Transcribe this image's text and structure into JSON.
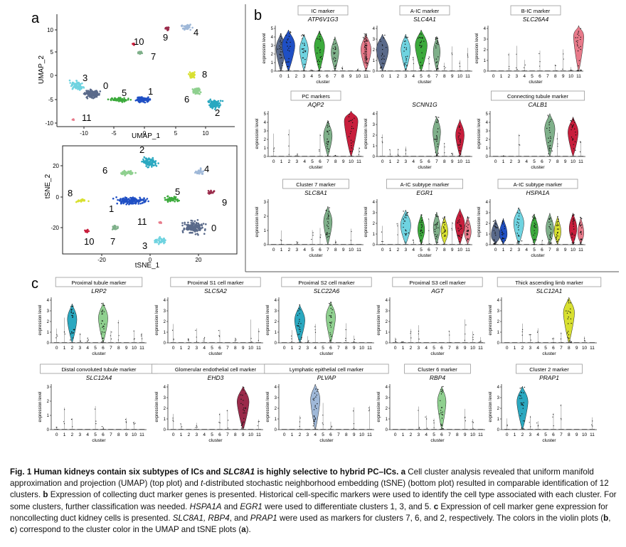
{
  "panel_letters": {
    "a": "a",
    "b": "b",
    "c": "c"
  },
  "umap": {
    "ylabel": "UMAP_2",
    "xlabel": "UMAP_1",
    "xticks": [
      "-10",
      "-5",
      "0",
      "5",
      "10"
    ],
    "yticks": [
      "10",
      "5",
      "0",
      "-5",
      "-10"
    ],
    "cluster_labels": [
      "0",
      "1",
      "2",
      "3",
      "4",
      "5",
      "6",
      "7",
      "8",
      "9",
      "10",
      "11"
    ]
  },
  "tsne": {
    "ylabel": "tSNE_2",
    "xlabel": "tSNE_1",
    "xticks": [
      "-20",
      "0",
      "20"
    ],
    "yticks": [
      "20",
      "0",
      "-20"
    ],
    "cluster_labels": [
      "0",
      "1",
      "2",
      "3",
      "4",
      "5",
      "6",
      "7",
      "8",
      "9",
      "10",
      "11"
    ]
  },
  "violin_axis": {
    "ylabel": "expression level",
    "xlabel": "cluster",
    "clusters": [
      "0",
      "1",
      "2",
      "3",
      "4",
      "5",
      "6",
      "7",
      "8",
      "9",
      "10",
      "11"
    ]
  },
  "cluster_colors": [
    "#5a6a8a",
    "#1f4fc4",
    "#2aa8c0",
    "#6fd3e0",
    "#9fb8d8",
    "#3caa3c",
    "#8fd08f",
    "#7fb08a",
    "#d8e030",
    "#9a2a4a",
    "#c81e3c",
    "#e87a8a"
  ],
  "panel_b": [
    {
      "header": "IC marker",
      "gene": "ATP6V1G3",
      "ymax": 5,
      "violins": [
        [
          0,
          0.55,
          2.6
        ],
        [
          1,
          0.75,
          3.0
        ],
        [
          3,
          0.5,
          2.5
        ],
        [
          5,
          0.6,
          2.9
        ],
        [
          7,
          0.45,
          2.2
        ],
        [
          11,
          0.6,
          2.5
        ]
      ]
    },
    {
      "header": "A-IC marker",
      "gene": "SLC4A1",
      "ymax": 4,
      "violins": [
        [
          0,
          0.7,
          2.0
        ],
        [
          3,
          0.55,
          2.0
        ],
        [
          5,
          0.7,
          2.4
        ],
        [
          7,
          0.4,
          1.8
        ]
      ]
    },
    {
      "header": "B-IC marker",
      "gene": "SLC26A4",
      "ymax": 4,
      "violins": [
        [
          11,
          0.6,
          3.2
        ]
      ]
    },
    {
      "header": "PC markers",
      "gene": "AQP2",
      "ymax": 5,
      "violins": [
        [
          7,
          0.5,
          2.4
        ],
        [
          10,
          0.8,
          4.1
        ]
      ]
    },
    {
      "header": "",
      "gene": "SCNN1G",
      "ymax": 4,
      "violins": [
        [
          7,
          0.45,
          2.3
        ],
        [
          10,
          0.5,
          2.0
        ]
      ]
    },
    {
      "header": "Connecting tubule marker",
      "gene": "CALB1",
      "ymax": 5,
      "violins": [
        [
          7,
          0.6,
          3.2
        ],
        [
          10,
          0.6,
          2.8
        ]
      ]
    },
    {
      "header": "Cluster 7 marker",
      "gene": "SLC8A1",
      "ymax": 3,
      "violins": [
        [
          7,
          0.5,
          1.6
        ]
      ]
    },
    {
      "header": "A-IC subtype marker",
      "gene": "EGR1",
      "ymax": 4,
      "violins": [
        [
          3,
          0.6,
          1.8
        ],
        [
          5,
          0.4,
          1.4
        ],
        [
          7,
          0.4,
          1.6
        ],
        [
          8,
          0.4,
          1.2
        ],
        [
          10,
          0.55,
          1.9
        ],
        [
          11,
          0.4,
          1.2
        ]
      ]
    },
    {
      "header": "A-IC subtype  marker",
      "gene": "HSPA1A",
      "ymax": 4,
      "violins": [
        [
          0,
          0.5,
          0.9
        ],
        [
          1,
          0.45,
          1.0
        ],
        [
          3,
          0.6,
          2.0
        ],
        [
          5,
          0.45,
          1.4
        ],
        [
          7,
          0.45,
          1.5
        ],
        [
          8,
          0.4,
          1.2
        ],
        [
          10,
          0.45,
          1.5
        ],
        [
          11,
          0.35,
          1.1
        ]
      ]
    }
  ],
  "panel_c": [
    {
      "header": "Proximal tubule marker",
      "gene": "LRP2",
      "ymax": 4,
      "violins": [
        [
          2,
          0.55,
          2.2
        ],
        [
          6,
          0.55,
          2.3
        ]
      ]
    },
    {
      "header": "Proximal S1 cell marker",
      "gene": "SLC5A2",
      "ymax": 4,
      "violins": []
    },
    {
      "header": "Proximal S2 cell marker",
      "gene": "SLC22A6",
      "ymax": 4,
      "violins": [
        [
          2,
          0.6,
          2.1
        ],
        [
          6,
          0.55,
          2.4
        ]
      ]
    },
    {
      "header": "Proximal S3 cell marker",
      "gene": "AGT",
      "ymax": 4,
      "violins": []
    },
    {
      "header": "Thick ascending limb marker",
      "gene": "SLC12A1",
      "ymax": 4,
      "violins": [
        [
          8,
          0.65,
          2.8
        ]
      ]
    },
    {
      "header": "Distal convoluted tubule marker",
      "gene": "SLC12A4",
      "ymax": 3,
      "violins": []
    },
    {
      "header": "Glomerular endothelial cell marker",
      "gene": "EHD3",
      "ymax": 4,
      "violins": [
        [
          9,
          0.7,
          2.6
        ]
      ]
    },
    {
      "header": "Lymphatic  epithelial cell marker",
      "gene": "PLVAP",
      "ymax": 4,
      "violins": [
        [
          4,
          0.55,
          2.8
        ]
      ]
    },
    {
      "header": "Cluster 6 marker",
      "gene": "RBP4",
      "ymax": 4,
      "violins": [
        [
          6,
          0.5,
          2.6
        ]
      ]
    },
    {
      "header": "Cluster 2 marker",
      "gene": "PRAP1",
      "ymax": 4,
      "violins": [
        [
          2,
          0.65,
          2.6
        ]
      ]
    }
  ],
  "caption": {
    "fig_label": "Fig. 1 ",
    "title_a": "Human kidneys contain six subtypes of ICs and ",
    "title_gene": "SLC8A1",
    "title_b": " is highly selective to hybrid PC–ICs.",
    "a_label": " a",
    "a_text_1": " Cell cluster analysis revealed that uniform manifold approximation and projection (UMAP) (top plot) and ",
    "a_italic_t": "t",
    "a_text_2": "-distributed stochastic neighborhood embedding (tSNE) (bottom plot) resulted in comparable identification of 12 clusters. ",
    "b_label": "b",
    "b_text_1": " Expression of collecting duct marker genes is presented. Historical cell-specific markers were used to identify the cell type associated with each cluster. For some clusters, further classification was needed. ",
    "b_gene_1": "HSPA1A",
    "b_and": " and ",
    "b_gene_2": "EGR1",
    "b_text_2": " were used to differentiate clusters 1, 3, and 5. ",
    "c_label": "c",
    "c_text_1": " Expression of cell marker gene expression for noncollecting duct kidney cells is presented. ",
    "c_genes": "SLC8A1, RBP4",
    "c_and": ", and ",
    "c_gene_3": "PRAP1",
    "c_text_2": " were used as markers for clusters 7, 6, and 2, respectively. The colors in the violin plots (",
    "c_b": "b",
    "c_comma": ", ",
    "c_c": "c",
    "c_text_3": ") correspond to the cluster color in the UMAP and tSNE plots (",
    "c_a": "a",
    "c_end": ")."
  }
}
